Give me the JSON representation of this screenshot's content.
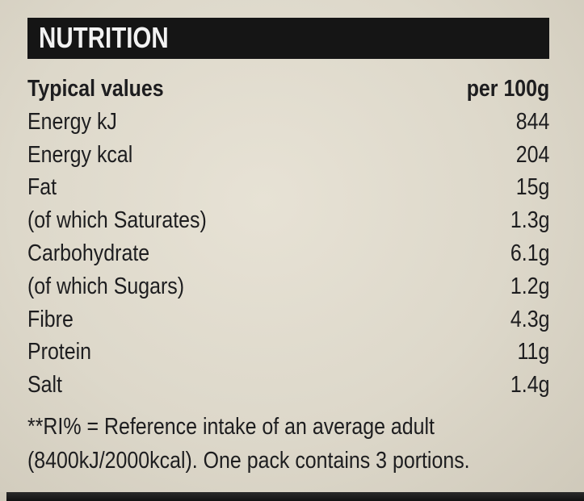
{
  "label": {
    "title": "NUTRITION",
    "header": {
      "name": "Typical values",
      "value": "per 100g"
    },
    "rows": [
      {
        "name": "Energy kJ",
        "value": "844"
      },
      {
        "name": "Energy kcal",
        "value": "204"
      },
      {
        "name": "Fat",
        "value": "15g"
      },
      {
        "name": "(of which Saturates)",
        "value": "1.3g"
      },
      {
        "name": "Carbohydrate",
        "value": "6.1g"
      },
      {
        "name": "(of which Sugars)",
        "value": "1.2g"
      },
      {
        "name": "Fibre",
        "value": "4.3g"
      },
      {
        "name": "Protein",
        "value": "11g"
      },
      {
        "name": "Salt",
        "value": "1.4g"
      }
    ],
    "footnote": {
      "line1": "**RI% = Reference intake of an average adult",
      "line2": "(8400kJ/2000kcal). One pack contains 3 portions."
    }
  },
  "colors": {
    "background": "#ddd8ca",
    "header_bar": "#151515",
    "header_text": "#f2f2f2",
    "text": "#1d1d1f"
  }
}
